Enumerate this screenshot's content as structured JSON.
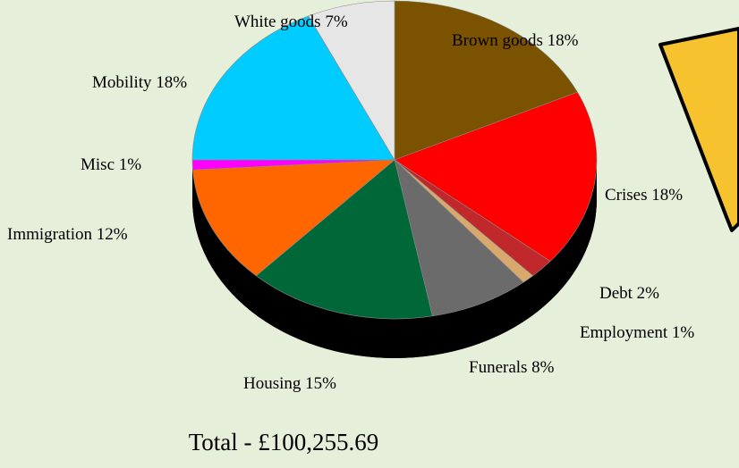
{
  "chart_data": {
    "type": "pie",
    "title": "",
    "labels": [
      "Brown goods 18%",
      "Crises 18%",
      "Debt 2%",
      "Employment 1%",
      "Funerals 8%",
      "Housing 15%",
      "Immigration 12%",
      "Misc 1%",
      "Mobility 18%",
      "White goods 7%"
    ],
    "series": [
      {
        "values": [
          18,
          18,
          2,
          1,
          8,
          15,
          12,
          1,
          18,
          7
        ],
        "colors": [
          "#7a5200",
          "#ff0000",
          "#c0282c",
          "#d9a86c",
          "#6b6b6b",
          "#006838",
          "#ff6600",
          "#ff00ff",
          "#00ccff",
          "#e6e6e6"
        ]
      }
    ],
    "style": "3d-tilted"
  },
  "total": "Total - £100,255.69",
  "callout": {
    "color": "#f6c22e"
  }
}
